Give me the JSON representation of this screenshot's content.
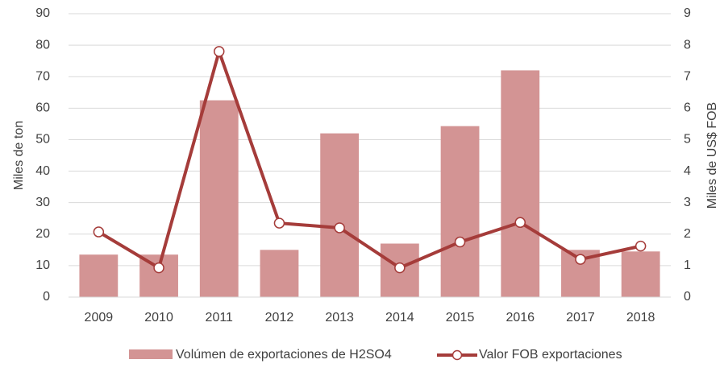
{
  "chart_data": {
    "type": "bar_line",
    "categories": [
      "2009",
      "2010",
      "2011",
      "2012",
      "2013",
      "2014",
      "2015",
      "2016",
      "2017",
      "2018"
    ],
    "series": [
      {
        "name": "Volúmen de exportaciones de H2SO4",
        "type": "bar",
        "color": "#d39494",
        "values": [
          13.5,
          13.5,
          62.5,
          15,
          52,
          17,
          54.3,
          72,
          15,
          14.5
        ]
      },
      {
        "name": "Valor FOB exportaciones",
        "type": "line",
        "axis": "y2",
        "color": "#a53c3a",
        "values": [
          2.07,
          0.93,
          7.8,
          2.35,
          2.2,
          0.93,
          1.75,
          2.37,
          1.2,
          1.62
        ]
      }
    ],
    "ylabel": "Miles de ton",
    "y2label": "Miles de US$ FOB",
    "ylim": [
      0,
      90
    ],
    "yticks": [
      0,
      10,
      20,
      30,
      40,
      50,
      60,
      70,
      80,
      90
    ],
    "y2lim": [
      0,
      9
    ],
    "y2ticks": [
      0,
      1,
      2,
      3,
      4,
      5,
      6,
      7,
      8,
      9
    ],
    "grid": true,
    "legend": "bottom"
  }
}
